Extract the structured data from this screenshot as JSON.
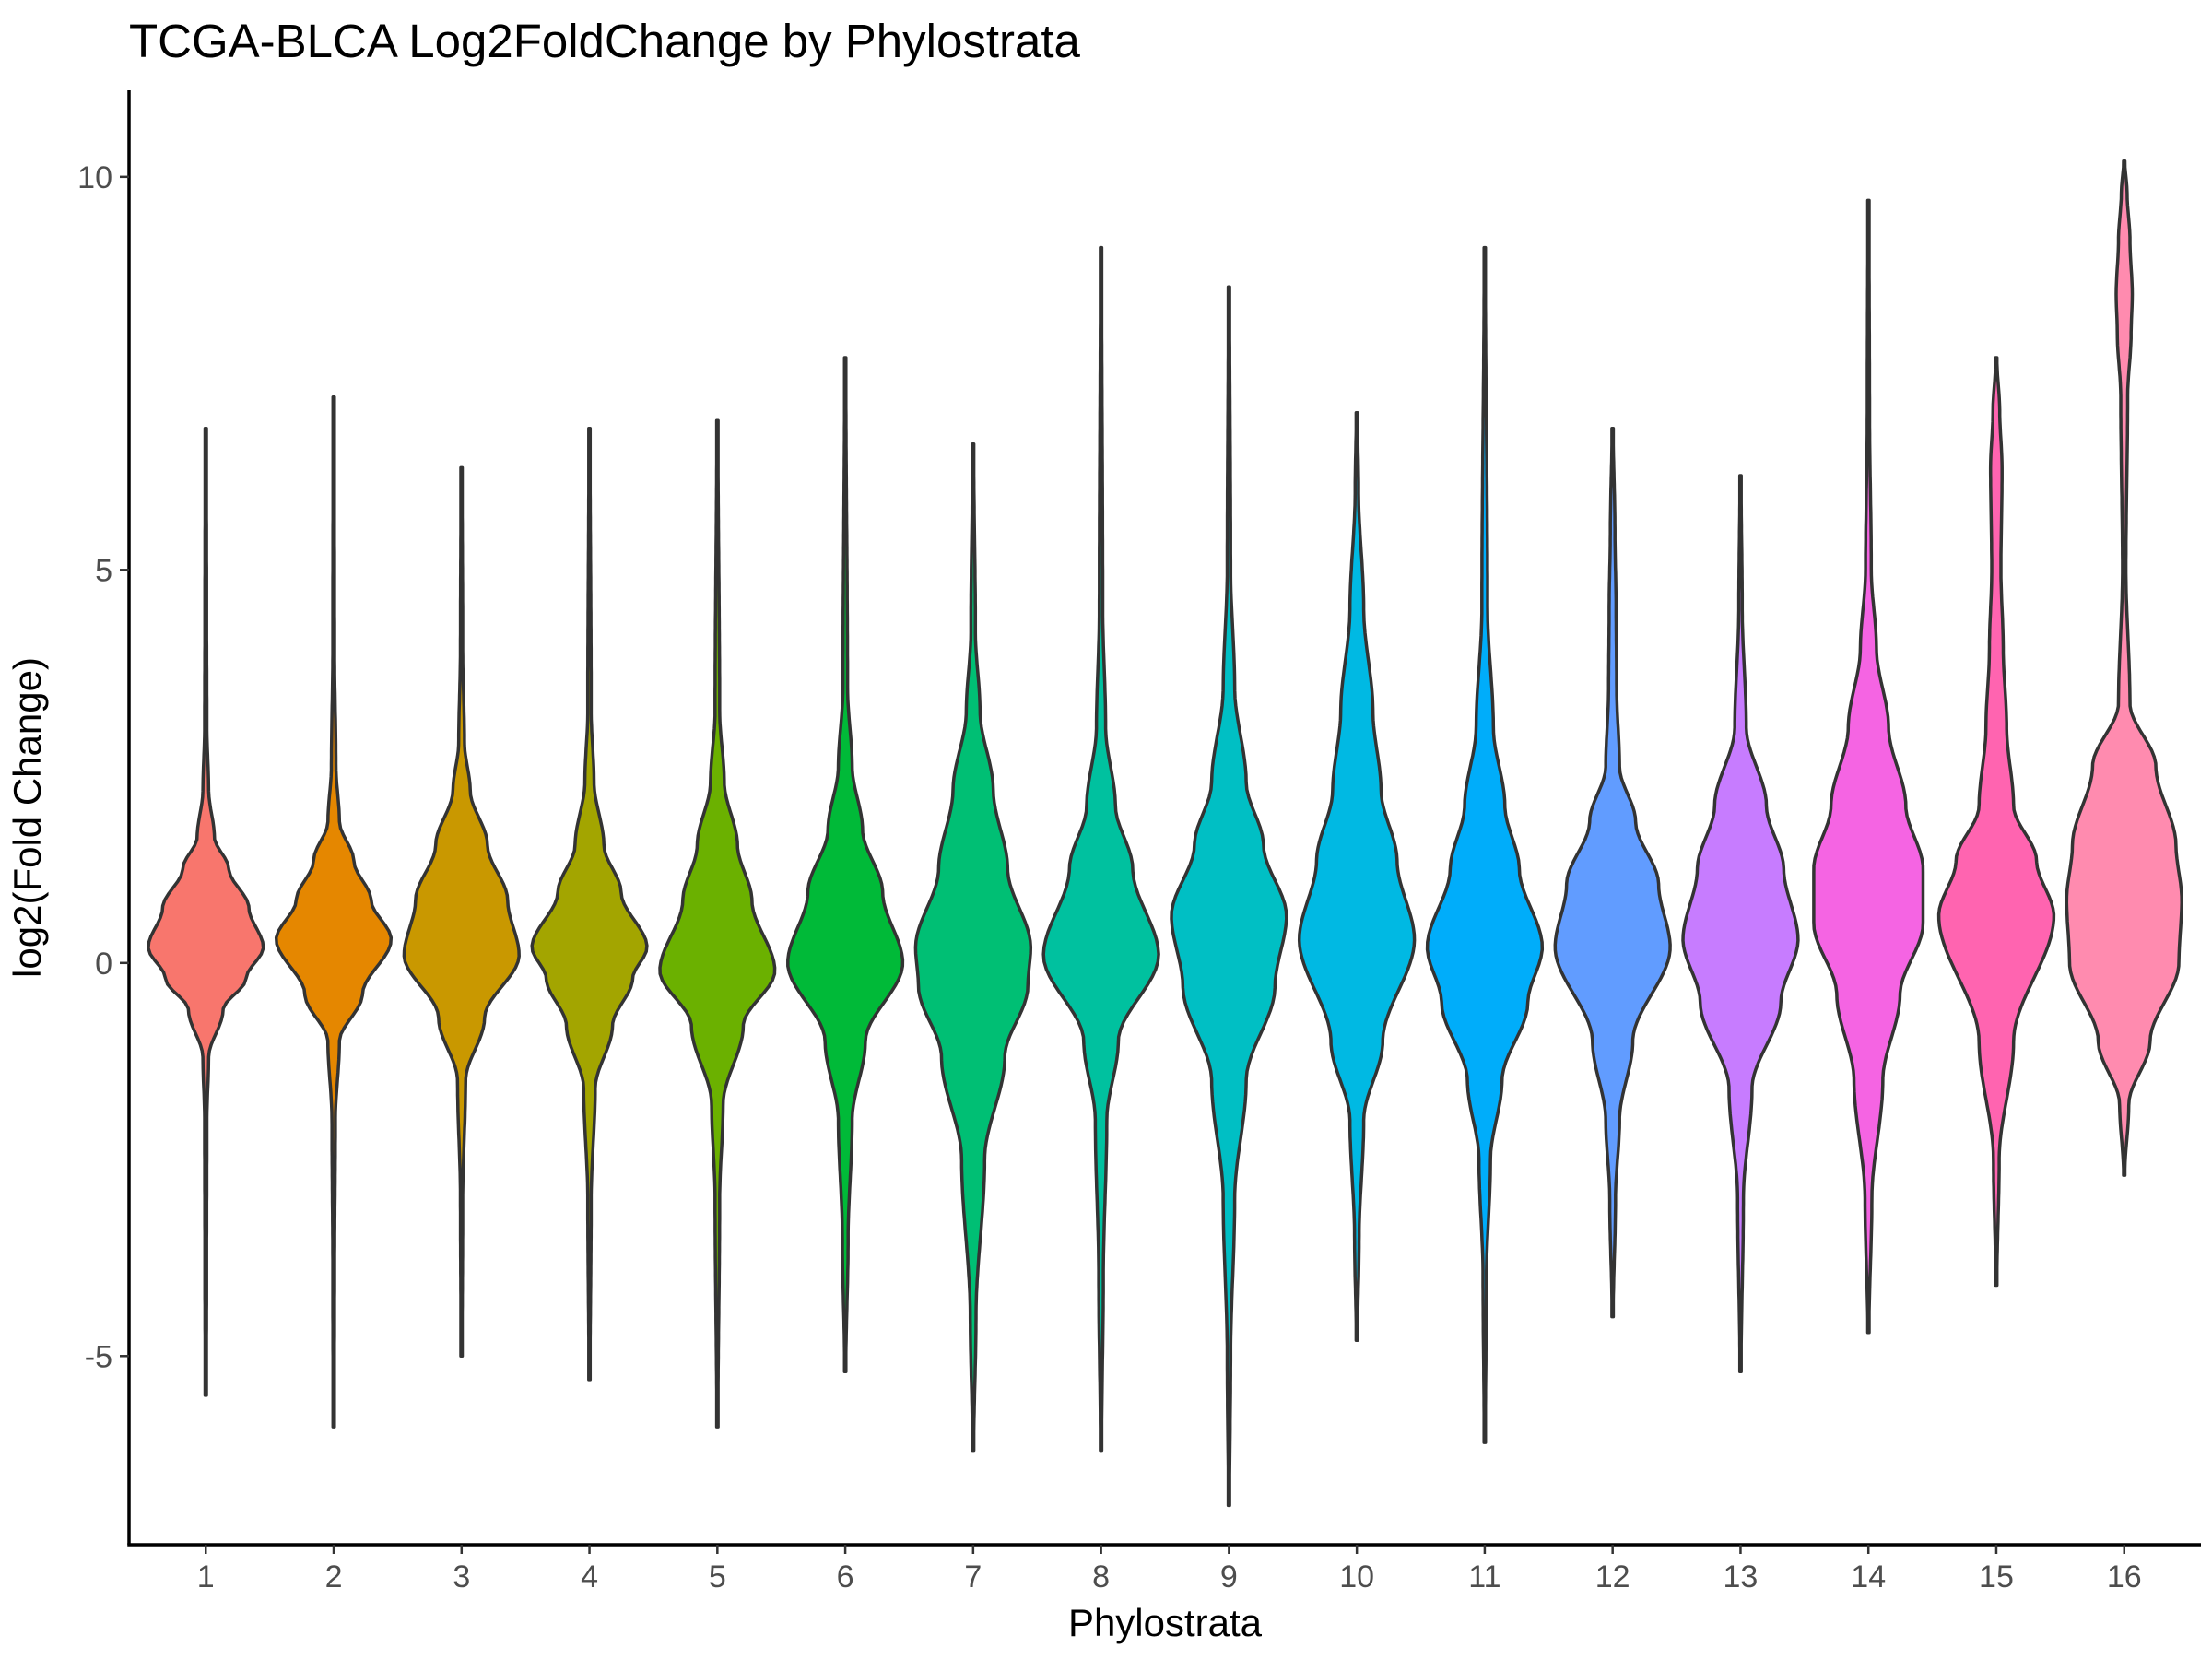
{
  "chart_data": {
    "type": "violin",
    "title": "TCGA-BLCA Log2FoldChange by Phylostrata",
    "xlabel": "Phylostrata",
    "ylabel": "log2(Fold Change)",
    "ylim": [
      -7.4,
      11.1
    ],
    "y_ticks": [
      -5,
      0,
      5,
      10
    ],
    "y_tick_labels": [
      "-5",
      "0",
      "5",
      "10"
    ],
    "grid": false,
    "legend": "none",
    "categories": [
      "1",
      "2",
      "3",
      "4",
      "5",
      "6",
      "7",
      "8",
      "9",
      "10",
      "11",
      "12",
      "13",
      "14",
      "15",
      "16"
    ],
    "series": [
      {
        "category": "1",
        "color": "#F8766D",
        "min": -5.5,
        "max": 6.8,
        "mode": 0.2,
        "profile": [
          [
            -5.5,
            0.01
          ],
          [
            -4,
            0.015
          ],
          [
            -2,
            0.02
          ],
          [
            -1.2,
            0.05
          ],
          [
            -0.6,
            0.3
          ],
          [
            -0.2,
            0.7
          ],
          [
            0.2,
            1.0
          ],
          [
            0.7,
            0.75
          ],
          [
            1.2,
            0.4
          ],
          [
            1.6,
            0.15
          ],
          [
            2.2,
            0.05
          ],
          [
            3,
            0.02
          ],
          [
            4.5,
            0.015
          ],
          [
            6.8,
            0.01
          ]
        ]
      },
      {
        "category": "2",
        "color": "#E58700",
        "min": -5.9,
        "max": 7.2,
        "mode": 0.3,
        "profile": [
          [
            -5.9,
            0.01
          ],
          [
            -4,
            0.015
          ],
          [
            -2,
            0.03
          ],
          [
            -1,
            0.1
          ],
          [
            -0.4,
            0.5
          ],
          [
            0.3,
            1.0
          ],
          [
            0.8,
            0.65
          ],
          [
            1.3,
            0.35
          ],
          [
            1.8,
            0.1
          ],
          [
            2.5,
            0.04
          ],
          [
            4,
            0.015
          ],
          [
            7.2,
            0.01
          ]
        ]
      },
      {
        "category": "3",
        "color": "#C99800",
        "min": -5,
        "max": 6.3,
        "mode": 0.1,
        "profile": [
          [
            -5,
            0.01
          ],
          [
            -3,
            0.02
          ],
          [
            -1.5,
            0.07
          ],
          [
            -0.7,
            0.4
          ],
          [
            0.1,
            1.0
          ],
          [
            0.8,
            0.8
          ],
          [
            1.5,
            0.45
          ],
          [
            2.2,
            0.15
          ],
          [
            2.8,
            0.05
          ],
          [
            4,
            0.02
          ],
          [
            6.3,
            0.01
          ]
        ]
      },
      {
        "category": "4",
        "color": "#A3A500",
        "min": -5.3,
        "max": 6.8,
        "mode": 0.1,
        "profile": [
          [
            -5.3,
            0.01
          ],
          [
            -3,
            0.03
          ],
          [
            -1.6,
            0.1
          ],
          [
            -0.8,
            0.4
          ],
          [
            -0.2,
            0.75
          ],
          [
            0.2,
            1.0
          ],
          [
            0.9,
            0.55
          ],
          [
            1.5,
            0.25
          ],
          [
            2.3,
            0.08
          ],
          [
            3.2,
            0.03
          ],
          [
            6.8,
            0.01
          ]
        ]
      },
      {
        "category": "5",
        "color": "#6BB100",
        "min": -5.9,
        "max": 6.9,
        "mode": 0.1,
        "profile": [
          [
            -5.9,
            0.01
          ],
          [
            -3,
            0.04
          ],
          [
            -1.8,
            0.1
          ],
          [
            -0.8,
            0.45
          ],
          [
            -0.1,
            1.0
          ],
          [
            0.8,
            0.6
          ],
          [
            1.5,
            0.35
          ],
          [
            2.3,
            0.12
          ],
          [
            3.2,
            0.04
          ],
          [
            6.9,
            0.01
          ]
        ]
      },
      {
        "category": "6",
        "color": "#00BA38",
        "min": -5.2,
        "max": 7.7,
        "mode": 0.0,
        "profile": [
          [
            -5.2,
            0.01
          ],
          [
            -3.5,
            0.05
          ],
          [
            -2,
            0.12
          ],
          [
            -1,
            0.35
          ],
          [
            0,
            1.0
          ],
          [
            0.9,
            0.65
          ],
          [
            1.7,
            0.3
          ],
          [
            2.5,
            0.12
          ],
          [
            3.5,
            0.04
          ],
          [
            7.7,
            0.01
          ]
        ]
      },
      {
        "category": "7",
        "color": "#00BF74",
        "min": -6.2,
        "max": 6.6,
        "mode": 0.0,
        "profile": [
          [
            -6.2,
            0.01
          ],
          [
            -4.5,
            0.05
          ],
          [
            -2.5,
            0.2
          ],
          [
            -1.2,
            0.55
          ],
          [
            -0.3,
            0.95
          ],
          [
            0.2,
            1.0
          ],
          [
            1.2,
            0.6
          ],
          [
            2.2,
            0.35
          ],
          [
            3.2,
            0.12
          ],
          [
            4.2,
            0.04
          ],
          [
            6.6,
            0.01
          ]
        ]
      },
      {
        "category": "8",
        "color": "#00C19F",
        "min": -6.2,
        "max": 9.1,
        "mode": 0.1,
        "profile": [
          [
            -6.2,
            0.01
          ],
          [
            -4,
            0.04
          ],
          [
            -2,
            0.1
          ],
          [
            -1,
            0.3
          ],
          [
            0.1,
            1.0
          ],
          [
            1.2,
            0.55
          ],
          [
            2,
            0.25
          ],
          [
            3,
            0.08
          ],
          [
            4.5,
            0.03
          ],
          [
            9.1,
            0.01
          ]
        ]
      },
      {
        "category": "9",
        "color": "#00BFC4",
        "min": -6.9,
        "max": 8.6,
        "mode": 0.5,
        "profile": [
          [
            -6.9,
            0.01
          ],
          [
            -5,
            0.03
          ],
          [
            -3,
            0.1
          ],
          [
            -1.5,
            0.3
          ],
          [
            -0.3,
            0.8
          ],
          [
            0.6,
            1.0
          ],
          [
            1.5,
            0.6
          ],
          [
            2.3,
            0.3
          ],
          [
            3.5,
            0.1
          ],
          [
            5,
            0.03
          ],
          [
            8.6,
            0.01
          ]
        ]
      },
      {
        "category": "10",
        "color": "#00B9E3",
        "min": -4.8,
        "max": 7.0,
        "mode": 0.3,
        "profile": [
          [
            -4.8,
            0.01
          ],
          [
            -3.5,
            0.04
          ],
          [
            -2,
            0.12
          ],
          [
            -1,
            0.45
          ],
          [
            0.3,
            1.0
          ],
          [
            1.3,
            0.7
          ],
          [
            2.2,
            0.42
          ],
          [
            3.2,
            0.28
          ],
          [
            4.5,
            0.12
          ],
          [
            6,
            0.03
          ],
          [
            7,
            0.01
          ]
        ]
      },
      {
        "category": "11",
        "color": "#00ADFA",
        "min": -6.1,
        "max": 9.1,
        "mode": 0.2,
        "profile": [
          [
            -6.1,
            0.01
          ],
          [
            -4,
            0.03
          ],
          [
            -2.5,
            0.1
          ],
          [
            -1.5,
            0.3
          ],
          [
            -0.5,
            0.75
          ],
          [
            0.2,
            1.0
          ],
          [
            1.2,
            0.6
          ],
          [
            2,
            0.35
          ],
          [
            3,
            0.15
          ],
          [
            4.5,
            0.05
          ],
          [
            9.1,
            0.01
          ]
        ]
      },
      {
        "category": "12",
        "color": "#619CFF",
        "min": -4.5,
        "max": 6.8,
        "mode": 0.2,
        "profile": [
          [
            -4.5,
            0.01
          ],
          [
            -3,
            0.05
          ],
          [
            -2,
            0.12
          ],
          [
            -1,
            0.35
          ],
          [
            0.2,
            1.0
          ],
          [
            1,
            0.8
          ],
          [
            1.8,
            0.4
          ],
          [
            2.5,
            0.12
          ],
          [
            3.5,
            0.07
          ],
          [
            4.5,
            0.06
          ],
          [
            5.5,
            0.04
          ],
          [
            6.8,
            0.01
          ]
        ]
      },
      {
        "category": "13",
        "color": "#C77CFF",
        "min": -5.2,
        "max": 6.2,
        "mode": 0.3,
        "profile": [
          [
            -5.2,
            0.01
          ],
          [
            -3,
            0.05
          ],
          [
            -1.6,
            0.2
          ],
          [
            -0.5,
            0.7
          ],
          [
            0.3,
            1.0
          ],
          [
            1.2,
            0.75
          ],
          [
            2,
            0.45
          ],
          [
            3,
            0.1
          ],
          [
            4.5,
            0.03
          ],
          [
            6.2,
            0.01
          ]
        ]
      },
      {
        "category": "14",
        "color": "#F564E3",
        "min": -4.7,
        "max": 9.7,
        "mode": 0.5,
        "profile": [
          [
            -4.7,
            0.01
          ],
          [
            -3,
            0.06
          ],
          [
            -1.5,
            0.25
          ],
          [
            -0.4,
            0.55
          ],
          [
            0.5,
            0.95
          ],
          [
            1.2,
            0.95
          ],
          [
            2,
            0.65
          ],
          [
            3,
            0.35
          ],
          [
            4,
            0.14
          ],
          [
            5,
            0.05
          ],
          [
            7,
            0.02
          ],
          [
            9.7,
            0.01
          ]
        ]
      },
      {
        "category": "15",
        "color": "#FF64B0",
        "min": -4.1,
        "max": 7.7,
        "mode": 0.6,
        "profile": [
          [
            -4.1,
            0.01
          ],
          [
            -2.5,
            0.05
          ],
          [
            -1,
            0.3
          ],
          [
            0.6,
            1.0
          ],
          [
            1.3,
            0.7
          ],
          [
            2,
            0.3
          ],
          [
            3,
            0.18
          ],
          [
            4,
            0.12
          ],
          [
            5,
            0.08
          ],
          [
            6.3,
            0.1
          ],
          [
            7,
            0.06
          ],
          [
            7.7,
            0.01
          ]
        ]
      },
      {
        "category": "16",
        "color": "#FF8BAF",
        "min": -2.7,
        "max": 10.2,
        "mode": 0.5,
        "profile": [
          [
            -2.7,
            0.01
          ],
          [
            -1.8,
            0.08
          ],
          [
            -1,
            0.45
          ],
          [
            0,
            0.95
          ],
          [
            0.8,
            1.0
          ],
          [
            1.5,
            0.9
          ],
          [
            2.5,
            0.55
          ],
          [
            3.3,
            0.1
          ],
          [
            5,
            0.03
          ],
          [
            7.2,
            0.06
          ],
          [
            8,
            0.12
          ],
          [
            8.5,
            0.14
          ],
          [
            9.2,
            0.1
          ],
          [
            9.8,
            0.05
          ],
          [
            10.2,
            0.01
          ]
        ]
      }
    ]
  }
}
